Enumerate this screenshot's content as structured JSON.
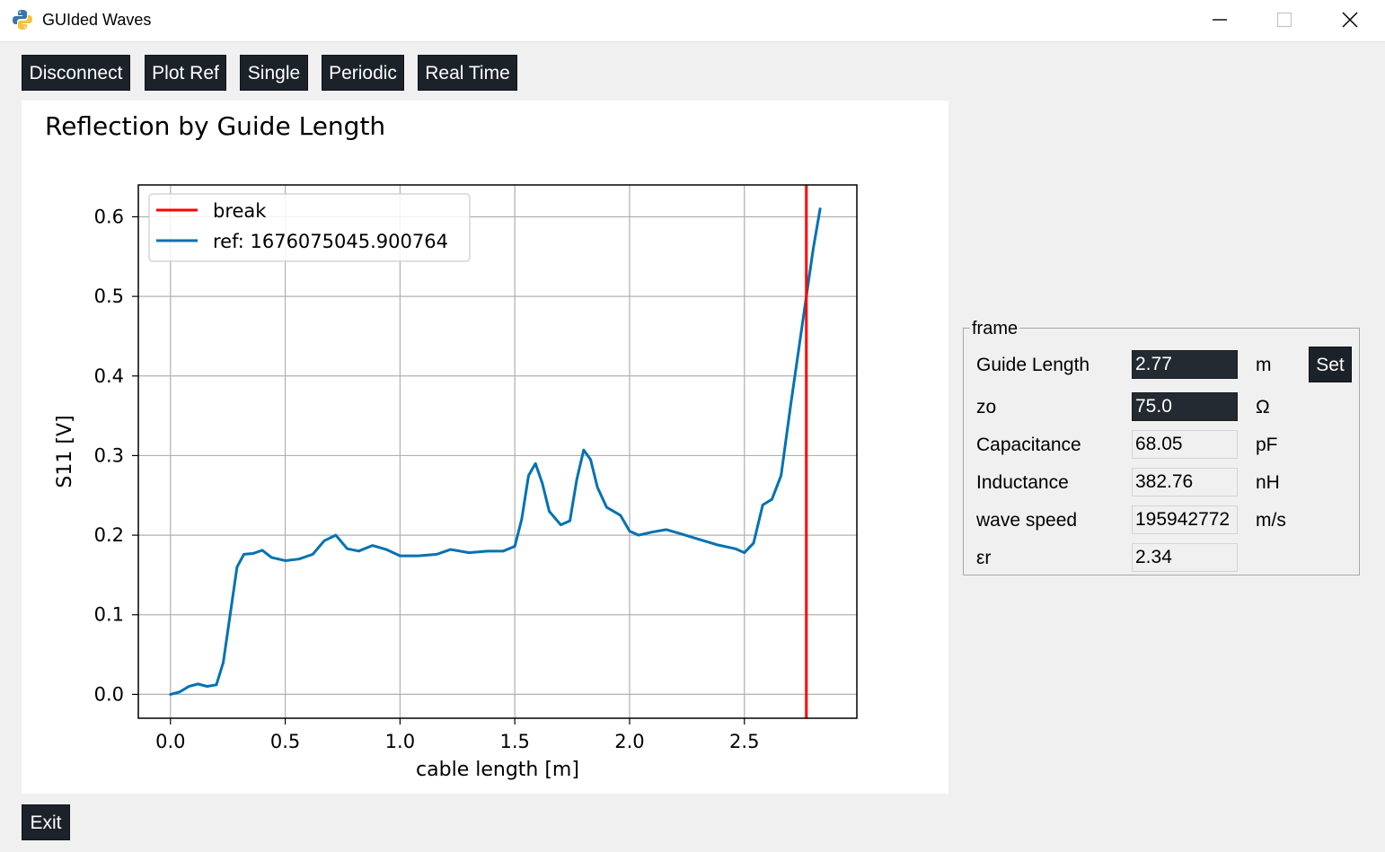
{
  "window": {
    "title": "GUIded Waves",
    "controls": {
      "minimize": "minimize-icon",
      "maximize": "maximize-icon",
      "close": "close-icon"
    }
  },
  "toolbar": {
    "disconnect": "Disconnect",
    "plot_ref": "Plot Ref",
    "single": "Single",
    "periodic": "Periodic",
    "real_time": "Real Time"
  },
  "plot": {
    "title": "Reflection by Guide Length"
  },
  "chart_data": {
    "type": "line",
    "xlabel": "cable length [m]",
    "ylabel": "S11 [V]",
    "xlim": [
      -0.14,
      2.99
    ],
    "ylim": [
      -0.03,
      0.64
    ],
    "xticks": [
      "0.0",
      "0.5",
      "1.0",
      "1.5",
      "2.0",
      "2.5"
    ],
    "yticks": [
      "0.0",
      "0.1",
      "0.2",
      "0.3",
      "0.4",
      "0.5",
      "0.6"
    ],
    "grid": true,
    "legend_position": "top-left",
    "series": [
      {
        "name": "break",
        "type": "vline",
        "x": 2.77,
        "color": "#ff0000"
      },
      {
        "name": "ref: 1676075045.900764",
        "color": "#0072b2",
        "x": [
          0.0,
          0.04,
          0.08,
          0.12,
          0.16,
          0.2,
          0.23,
          0.26,
          0.29,
          0.32,
          0.36,
          0.4,
          0.44,
          0.5,
          0.56,
          0.62,
          0.67,
          0.72,
          0.77,
          0.82,
          0.88,
          0.94,
          1.0,
          1.08,
          1.16,
          1.22,
          1.3,
          1.38,
          1.45,
          1.5,
          1.53,
          1.56,
          1.59,
          1.62,
          1.65,
          1.7,
          1.74,
          1.77,
          1.8,
          1.83,
          1.86,
          1.9,
          1.96,
          2.0,
          2.04,
          2.1,
          2.16,
          2.22,
          2.3,
          2.38,
          2.46,
          2.5,
          2.54,
          2.58,
          2.62,
          2.66,
          2.7,
          2.74,
          2.77,
          2.8,
          2.83
        ],
        "y": [
          0.0,
          0.003,
          0.01,
          0.013,
          0.01,
          0.012,
          0.04,
          0.1,
          0.16,
          0.176,
          0.177,
          0.181,
          0.172,
          0.168,
          0.17,
          0.176,
          0.193,
          0.2,
          0.183,
          0.18,
          0.187,
          0.182,
          0.174,
          0.174,
          0.176,
          0.182,
          0.178,
          0.18,
          0.18,
          0.186,
          0.22,
          0.275,
          0.29,
          0.265,
          0.23,
          0.213,
          0.218,
          0.27,
          0.307,
          0.295,
          0.26,
          0.235,
          0.225,
          0.205,
          0.2,
          0.204,
          0.207,
          0.202,
          0.195,
          0.188,
          0.183,
          0.178,
          0.19,
          0.238,
          0.245,
          0.275,
          0.36,
          0.44,
          0.5,
          0.56,
          0.61
        ]
      }
    ]
  },
  "frame": {
    "legend": "frame",
    "rows": [
      {
        "label": "Guide Length",
        "value": "2.77",
        "unit": "m"
      },
      {
        "label": "zo",
        "value": "75.0",
        "unit": "Ω"
      },
      {
        "label": "Capacitance",
        "value": "68.05",
        "unit": "pF"
      },
      {
        "label": "Inductance",
        "value": "382.76",
        "unit": "nH"
      },
      {
        "label": "wave speed",
        "value": "195942772",
        "unit": "m/s"
      },
      {
        "label": "εr",
        "value": "2.34",
        "unit": ""
      }
    ],
    "set_button": "Set"
  },
  "footer": {
    "exit": "Exit"
  }
}
